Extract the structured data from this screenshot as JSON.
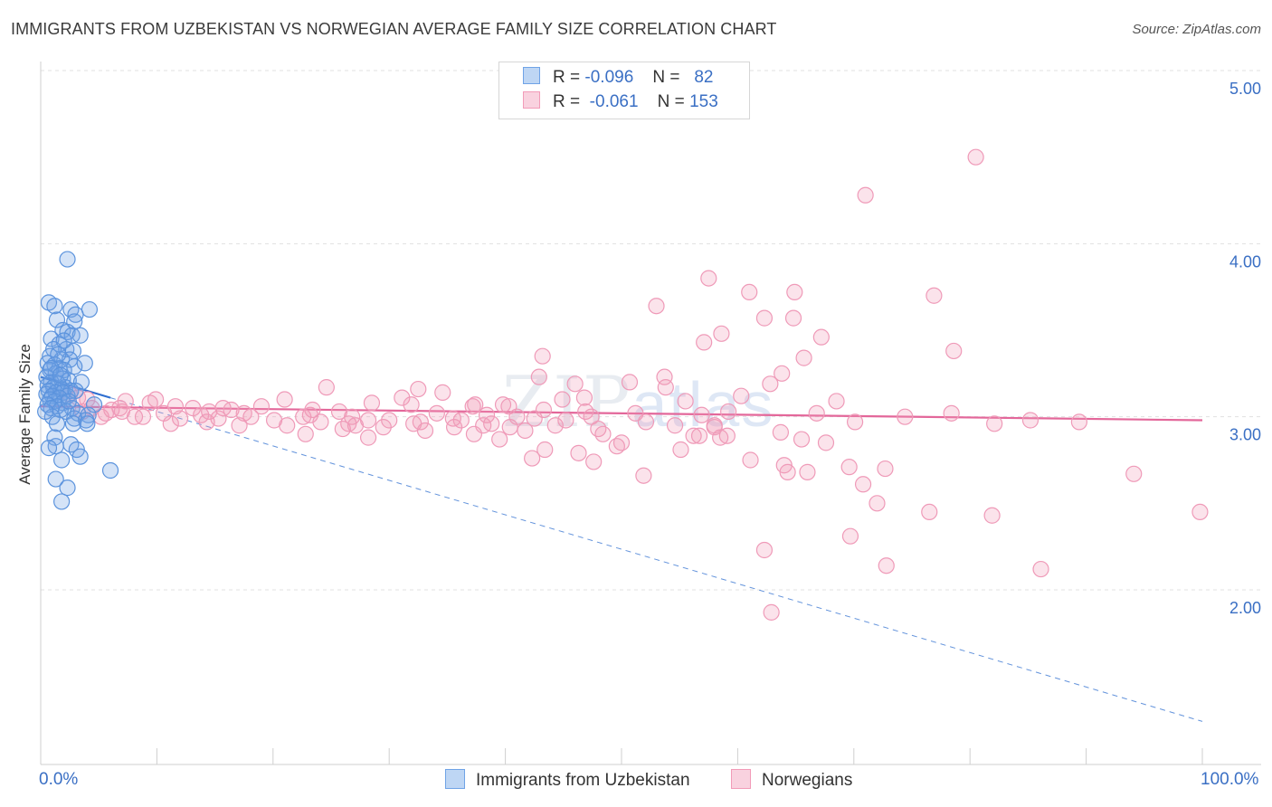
{
  "header": {
    "title": "IMMIGRANTS FROM UZBEKISTAN VS NORWEGIAN AVERAGE FAMILY SIZE CORRELATION CHART",
    "source": "Source: ZipAtlas.com"
  },
  "watermark": {
    "zip": "ZIP",
    "atlas": "atlas"
  },
  "legend": {
    "rows": [
      {
        "r_label": "R =",
        "r_value": "-0.096",
        "n_label": "N =",
        "n_value": "82",
        "color": "#6fa3e6"
      },
      {
        "r_label": "R =",
        "r_value": "-0.061",
        "n_label": "N =",
        "n_value": "153",
        "color": "#f29bb8"
      }
    ]
  },
  "bottom_legend": {
    "series1": "Immigrants from Uzbekistan",
    "series2": "Norwegians"
  },
  "chart_data": {
    "type": "scatter",
    "title": "IMMIGRANTS FROM UZBEKISTAN VS NORWEGIAN AVERAGE FAMILY SIZE CORRELATION CHART",
    "ylabel": "Average Family Size",
    "xlabel": "",
    "xlim": [
      0,
      100
    ],
    "ylim": [
      1.0,
      5.1
    ],
    "x_tick_labels": [
      "0.0%",
      "100.0%"
    ],
    "y_ticks": [
      2.0,
      3.0,
      4.0,
      5.0
    ],
    "y_tick_labels": [
      "2.00",
      "3.00",
      "4.00",
      "5.00"
    ],
    "grid": true,
    "legend_position": "top-center",
    "colors": {
      "uzbekistan": "#4a86d8",
      "norwegians": "#ec7fa5",
      "uzb_trend": "#2f6fd0",
      "nor_trend": "#e3679a"
    },
    "series": [
      {
        "name": "Immigrants from Uzbekistan",
        "trend": {
          "x": [
            0,
            6
          ],
          "y": [
            3.23,
            3.11
          ],
          "extended_x": [
            6,
            100
          ],
          "extended_y": [
            3.11,
            1.24
          ]
        },
        "points": [
          [
            2.3,
            3.91
          ],
          [
            0.7,
            3.66
          ],
          [
            1.2,
            3.64
          ],
          [
            4.2,
            3.62
          ],
          [
            2.6,
            3.62
          ],
          [
            3.0,
            3.59
          ],
          [
            1.4,
            3.56
          ],
          [
            2.9,
            3.55
          ],
          [
            1.9,
            3.5
          ],
          [
            2.3,
            3.49
          ],
          [
            2.7,
            3.47
          ],
          [
            3.4,
            3.47
          ],
          [
            0.9,
            3.45
          ],
          [
            1.6,
            3.42
          ],
          [
            2.2,
            3.39
          ],
          [
            1.1,
            3.39
          ],
          [
            2.8,
            3.38
          ],
          [
            0.8,
            3.35
          ],
          [
            1.8,
            3.33
          ],
          [
            2.5,
            3.33
          ],
          [
            3.8,
            3.31
          ],
          [
            0.6,
            3.31
          ],
          [
            1.2,
            3.3
          ],
          [
            2.9,
            3.29
          ],
          [
            1.6,
            3.28
          ],
          [
            0.8,
            3.27
          ],
          [
            2.0,
            3.27
          ],
          [
            1.3,
            3.25
          ],
          [
            0.5,
            3.23
          ],
          [
            1.9,
            3.22
          ],
          [
            2.4,
            3.21
          ],
          [
            3.5,
            3.2
          ],
          [
            0.9,
            3.2
          ],
          [
            1.5,
            3.19
          ],
          [
            0.6,
            3.18
          ],
          [
            2.1,
            3.17
          ],
          [
            1.1,
            3.17
          ],
          [
            1.8,
            3.16
          ],
          [
            0.7,
            3.15
          ],
          [
            2.6,
            3.15
          ],
          [
            1.3,
            3.14
          ],
          [
            1.9,
            3.14
          ],
          [
            0.5,
            3.13
          ],
          [
            1.0,
            3.12
          ],
          [
            2.3,
            3.12
          ],
          [
            1.6,
            3.11
          ],
          [
            0.8,
            3.1
          ],
          [
            1.2,
            3.09
          ],
          [
            1.9,
            3.08
          ],
          [
            4.6,
            3.07
          ],
          [
            0.6,
            3.07
          ],
          [
            1.4,
            3.06
          ],
          [
            2.7,
            3.05
          ],
          [
            0.9,
            3.05
          ],
          [
            1.7,
            3.04
          ],
          [
            2.2,
            3.03
          ],
          [
            3.2,
            3.02
          ],
          [
            4.1,
            3.01
          ],
          [
            1.0,
            3.0
          ],
          [
            2.9,
            2.99
          ],
          [
            3.9,
            2.98
          ],
          [
            2.8,
            2.96
          ],
          [
            1.4,
            2.96
          ],
          [
            4.0,
            2.96
          ],
          [
            1.2,
            2.88
          ],
          [
            2.6,
            2.84
          ],
          [
            1.3,
            2.83
          ],
          [
            0.7,
            2.82
          ],
          [
            3.1,
            2.81
          ],
          [
            3.4,
            2.77
          ],
          [
            1.8,
            2.75
          ],
          [
            6.0,
            2.69
          ],
          [
            1.3,
            2.64
          ],
          [
            2.3,
            2.59
          ],
          [
            1.8,
            2.51
          ],
          [
            0.9,
            3.28
          ],
          [
            1.5,
            3.36
          ],
          [
            2.0,
            3.44
          ],
          [
            3.0,
            3.15
          ],
          [
            1.7,
            3.24
          ],
          [
            0.4,
            3.03
          ],
          [
            2.4,
            3.09
          ]
        ]
      },
      {
        "name": "Norwegians",
        "trend": {
          "x": [
            0,
            100
          ],
          "y": [
            3.06,
            2.98
          ]
        },
        "points": [
          [
            80.5,
            4.5
          ],
          [
            71.0,
            4.28
          ],
          [
            57.5,
            3.8
          ],
          [
            61.0,
            3.72
          ],
          [
            64.9,
            3.72
          ],
          [
            76.9,
            3.7
          ],
          [
            53.0,
            3.64
          ],
          [
            62.3,
            3.57
          ],
          [
            64.8,
            3.57
          ],
          [
            58.6,
            3.48
          ],
          [
            67.2,
            3.46
          ],
          [
            57.1,
            3.43
          ],
          [
            78.6,
            3.38
          ],
          [
            43.2,
            3.35
          ],
          [
            65.7,
            3.34
          ],
          [
            42.9,
            3.23
          ],
          [
            63.8,
            3.25
          ],
          [
            53.7,
            3.23
          ],
          [
            46.0,
            3.19
          ],
          [
            50.7,
            3.2
          ],
          [
            62.8,
            3.19
          ],
          [
            24.6,
            3.17
          ],
          [
            32.5,
            3.16
          ],
          [
            34.6,
            3.14
          ],
          [
            53.8,
            3.17
          ],
          [
            60.3,
            3.12
          ],
          [
            31.1,
            3.11
          ],
          [
            46.8,
            3.11
          ],
          [
            9.9,
            3.1
          ],
          [
            21.0,
            3.1
          ],
          [
            55.5,
            3.09
          ],
          [
            68.5,
            3.09
          ],
          [
            7.3,
            3.09
          ],
          [
            28.5,
            3.08
          ],
          [
            37.4,
            3.07
          ],
          [
            39.8,
            3.07
          ],
          [
            31.9,
            3.07
          ],
          [
            40.3,
            3.06
          ],
          [
            11.6,
            3.06
          ],
          [
            37.2,
            3.06
          ],
          [
            19.0,
            3.06
          ],
          [
            15.7,
            3.05
          ],
          [
            6.8,
            3.05
          ],
          [
            13.1,
            3.05
          ],
          [
            4.4,
            3.05
          ],
          [
            23.4,
            3.04
          ],
          [
            16.4,
            3.04
          ],
          [
            43.3,
            3.04
          ],
          [
            14.5,
            3.03
          ],
          [
            46.9,
            3.03
          ],
          [
            59.2,
            3.03
          ],
          [
            3.6,
            3.03
          ],
          [
            25.7,
            3.03
          ],
          [
            17.5,
            3.02
          ],
          [
            10.6,
            3.02
          ],
          [
            78.4,
            3.02
          ],
          [
            34.1,
            3.02
          ],
          [
            23.2,
            3.01
          ],
          [
            13.8,
            3.01
          ],
          [
            38.4,
            3.01
          ],
          [
            56.9,
            3.01
          ],
          [
            41.0,
            3.0
          ],
          [
            47.4,
            3.0
          ],
          [
            26.8,
            3.0
          ],
          [
            5.2,
            3.0
          ],
          [
            8.8,
            3.0
          ],
          [
            18.1,
            3.0
          ],
          [
            22.6,
            3.0
          ],
          [
            15.3,
            2.99
          ],
          [
            35.5,
            2.99
          ],
          [
            42.5,
            2.99
          ],
          [
            12.0,
            2.99
          ],
          [
            30.0,
            2.98
          ],
          [
            28.2,
            2.98
          ],
          [
            36.2,
            2.98
          ],
          [
            20.1,
            2.98
          ],
          [
            45.2,
            2.98
          ],
          [
            52.1,
            2.97
          ],
          [
            14.3,
            2.97
          ],
          [
            24.1,
            2.97
          ],
          [
            32.7,
            2.97
          ],
          [
            26.5,
            2.96
          ],
          [
            38.8,
            2.96
          ],
          [
            32.1,
            2.96
          ],
          [
            11.2,
            2.96
          ],
          [
            27.1,
            2.95
          ],
          [
            38.1,
            2.95
          ],
          [
            44.3,
            2.95
          ],
          [
            58.0,
            2.94
          ],
          [
            54.6,
            2.95
          ],
          [
            82.1,
            2.96
          ],
          [
            21.2,
            2.95
          ],
          [
            17.1,
            2.95
          ],
          [
            29.5,
            2.94
          ],
          [
            35.6,
            2.94
          ],
          [
            40.4,
            2.94
          ],
          [
            48.0,
            2.93
          ],
          [
            26.0,
            2.93
          ],
          [
            33.1,
            2.92
          ],
          [
            41.7,
            2.92
          ],
          [
            48.4,
            2.9
          ],
          [
            22.8,
            2.9
          ],
          [
            37.3,
            2.9
          ],
          [
            56.2,
            2.89
          ],
          [
            59.1,
            2.89
          ],
          [
            65.5,
            2.87
          ],
          [
            67.6,
            2.85
          ],
          [
            28.2,
            2.88
          ],
          [
            39.5,
            2.87
          ],
          [
            50.0,
            2.85
          ],
          [
            49.6,
            2.83
          ],
          [
            43.4,
            2.81
          ],
          [
            46.3,
            2.79
          ],
          [
            55.1,
            2.81
          ],
          [
            64.0,
            2.72
          ],
          [
            42.3,
            2.76
          ],
          [
            47.6,
            2.74
          ],
          [
            61.1,
            2.75
          ],
          [
            69.6,
            2.71
          ],
          [
            66.0,
            2.68
          ],
          [
            72.7,
            2.7
          ],
          [
            51.9,
            2.66
          ],
          [
            58.5,
            2.88
          ],
          [
            56.7,
            2.89
          ],
          [
            64.3,
            2.68
          ],
          [
            70.8,
            2.61
          ],
          [
            72.0,
            2.5
          ],
          [
            76.5,
            2.45
          ],
          [
            81.9,
            2.43
          ],
          [
            94.1,
            2.67
          ],
          [
            99.8,
            2.45
          ],
          [
            69.7,
            2.31
          ],
          [
            62.3,
            2.23
          ],
          [
            72.8,
            2.14
          ],
          [
            86.1,
            2.12
          ],
          [
            62.9,
            1.87
          ],
          [
            6.1,
            3.04
          ],
          [
            8.1,
            3.0
          ],
          [
            9.4,
            3.08
          ],
          [
            2.5,
            3.13
          ],
          [
            3.2,
            3.11
          ],
          [
            4.0,
            3.1
          ],
          [
            5.6,
            3.02
          ],
          [
            7.0,
            3.03
          ],
          [
            44.9,
            3.1
          ],
          [
            51.2,
            3.02
          ],
          [
            58.0,
            2.95
          ],
          [
            63.7,
            2.91
          ],
          [
            66.8,
            3.02
          ],
          [
            70.1,
            2.97
          ],
          [
            74.4,
            3.0
          ],
          [
            85.2,
            2.98
          ],
          [
            89.4,
            2.97
          ]
        ]
      }
    ]
  }
}
